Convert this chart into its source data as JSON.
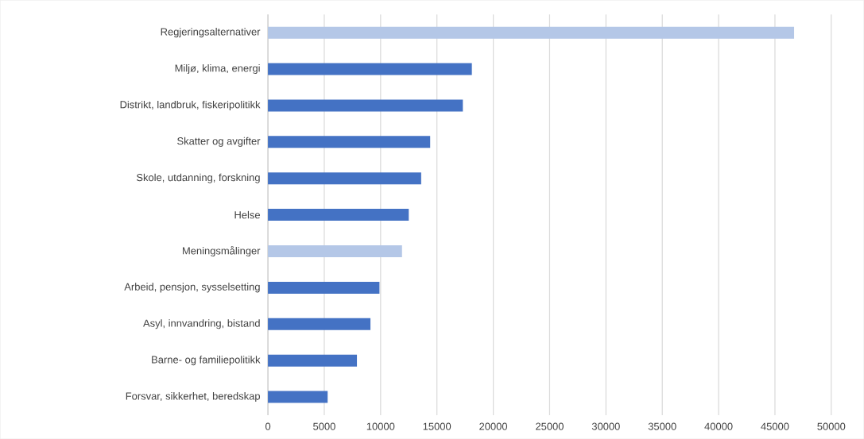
{
  "chart_data": {
    "type": "bar",
    "orientation": "horizontal",
    "categories": [
      "Regjeringsalternativer",
      "Miljø, klima, energi",
      "Distrikt, landbruk, fiskeripolitikk",
      "Skatter og avgifter",
      "Skole, utdanning, forskning",
      "Helse",
      "Meningsmålinger",
      "Arbeid, pensjon, sysselsetting",
      "Asyl, innvandring, bistand",
      "Barne- og familiepolitikk",
      "Forsvar, sikkerhet, beredskap"
    ],
    "values": [
      46700,
      18100,
      17300,
      14400,
      13600,
      12500,
      11900,
      9900,
      9100,
      7900,
      5300
    ],
    "colors": [
      "#b4c7e7",
      "#4472c4",
      "#4472c4",
      "#4472c4",
      "#4472c4",
      "#4472c4",
      "#b4c7e7",
      "#4472c4",
      "#4472c4",
      "#4472c4",
      "#4472c4"
    ],
    "xlim": [
      0,
      50000
    ],
    "xticks": [
      0,
      5000,
      10000,
      15000,
      20000,
      25000,
      30000,
      35000,
      40000,
      45000,
      50000
    ],
    "grid": "x"
  }
}
